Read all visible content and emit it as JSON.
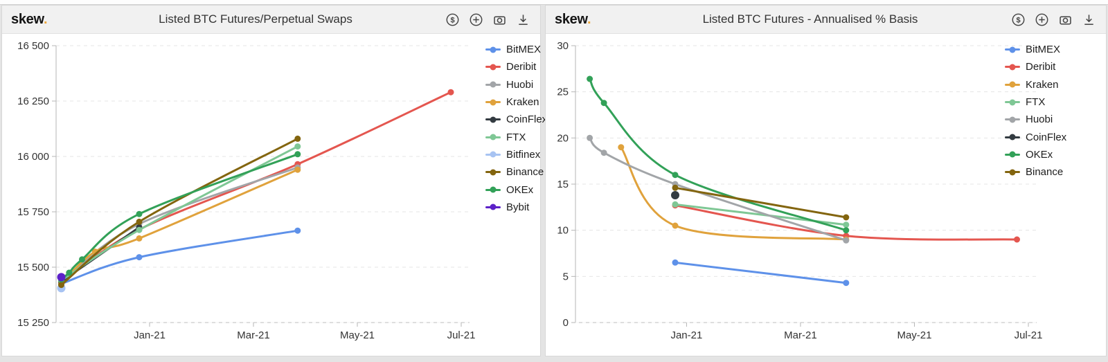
{
  "page": {
    "background": "#e4e4e4",
    "panel_background": "#ffffff",
    "header_background": "#f1f1f1"
  },
  "brand": {
    "name": "skew",
    "dot": ".",
    "dot_color": "#eda73b"
  },
  "toolbar": {
    "icons": [
      "dollar-icon",
      "plus-icon",
      "camera-icon",
      "download-icon"
    ]
  },
  "charts": [
    {
      "brand": "skew",
      "brand_dot": ".",
      "title": "Listed BTC Futures/Perpetual Swaps",
      "chart_data": {
        "type": "line",
        "title": "Listed BTC Futures/Perpetual Swaps",
        "x_axis": {
          "unit": "months since Nov-2020",
          "range": [
            0.2,
            8.0
          ],
          "ticks": [
            {
              "v": 2,
              "label": "Jan-21"
            },
            {
              "v": 4,
              "label": "Mar-21"
            },
            {
              "v": 6,
              "label": "May-21"
            },
            {
              "v": 8,
              "label": "Jul-21"
            }
          ]
        },
        "y_axis": {
          "range": [
            15250,
            16500
          ],
          "ticks": [
            {
              "v": 15250,
              "label": "15 250"
            },
            {
              "v": 15500,
              "label": "15 500"
            },
            {
              "v": 15750,
              "label": "15 750"
            },
            {
              "v": 16000,
              "label": "16 000"
            },
            {
              "v": 16250,
              "label": "16 250"
            },
            {
              "v": 16500,
              "label": "16 500"
            }
          ]
        },
        "grid": "horizontal-dashed",
        "legend_position": "right",
        "series": [
          {
            "name": "BitMEX",
            "color": "#5e91e9",
            "points": [
              [
                0.3,
                15425
              ],
              [
                1.8,
                15545
              ],
              [
                4.85,
                15665
              ]
            ]
          },
          {
            "name": "Deribit",
            "color": "#e4564f",
            "points": [
              [
                0.3,
                15430
              ],
              [
                1.8,
                15670
              ],
              [
                4.85,
                15965
              ],
              [
                7.8,
                16290
              ]
            ]
          },
          {
            "name": "Huobi",
            "color": "#a2a5a8",
            "points": [
              [
                0.3,
                15435
              ],
              [
                1.8,
                15695
              ],
              [
                4.85,
                15950
              ]
            ]
          },
          {
            "name": "Kraken",
            "color": "#e0a23c",
            "points": [
              [
                0.3,
                15425
              ],
              [
                0.95,
                15570
              ],
              [
                1.8,
                15630
              ],
              [
                4.85,
                15940
              ]
            ]
          },
          {
            "name": "CoinFlex",
            "color": "#333b41",
            "points": [
              [
                0.3,
                15435
              ],
              [
                1.8,
                15680
              ]
            ]
          },
          {
            "name": "FTX",
            "color": "#7fc795",
            "points": [
              [
                0.3,
                15440
              ],
              [
                1.8,
                15668
              ],
              [
                4.85,
                16045
              ]
            ]
          },
          {
            "name": "Bitfinex",
            "color": "#a7c3f2",
            "points": [
              [
                0.3,
                15405
              ]
            ],
            "dot_only": true
          },
          {
            "name": "Binance",
            "color": "#83650f",
            "points": [
              [
                0.3,
                15420
              ],
              [
                1.8,
                15705
              ],
              [
                4.85,
                16080
              ]
            ]
          },
          {
            "name": "OKEx",
            "color": "#32a158",
            "points": [
              [
                0.3,
                15445
              ],
              [
                0.45,
                15475
              ],
              [
                0.7,
                15535
              ],
              [
                1.8,
                15740
              ],
              [
                4.85,
                16010
              ]
            ]
          },
          {
            "name": "Bybit",
            "color": "#5c21c8",
            "points": [
              [
                0.3,
                15455
              ]
            ],
            "dot_only": true
          }
        ]
      }
    },
    {
      "brand": "skew",
      "brand_dot": ".",
      "title": "Listed BTC Futures - Annualised % Basis",
      "chart_data": {
        "type": "line",
        "title": "Listed BTC Futures - Annualised % Basis",
        "x_axis": {
          "unit": "months since Nov-2020",
          "range": [
            0.05,
            8.0
          ],
          "ticks": [
            {
              "v": 2,
              "label": "Jan-21"
            },
            {
              "v": 4,
              "label": "Mar-21"
            },
            {
              "v": 6,
              "label": "May-21"
            },
            {
              "v": 8,
              "label": "Jul-21"
            }
          ]
        },
        "y_axis": {
          "range": [
            0,
            30
          ],
          "ticks": [
            {
              "v": 0,
              "label": "0"
            },
            {
              "v": 5,
              "label": "5"
            },
            {
              "v": 10,
              "label": "10"
            },
            {
              "v": 15,
              "label": "15"
            },
            {
              "v": 20,
              "label": "20"
            },
            {
              "v": 25,
              "label": "25"
            },
            {
              "v": 30,
              "label": "30"
            }
          ]
        },
        "grid": "horizontal-dashed",
        "legend_position": "right",
        "series": [
          {
            "name": "BitMEX",
            "color": "#5e91e9",
            "points": [
              [
                1.8,
                6.5
              ],
              [
                4.8,
                4.3
              ]
            ]
          },
          {
            "name": "Deribit",
            "color": "#e4564f",
            "points": [
              [
                1.8,
                12.7
              ],
              [
                4.8,
                9.4
              ],
              [
                7.8,
                9.0
              ]
            ]
          },
          {
            "name": "Kraken",
            "color": "#e0a23c",
            "points": [
              [
                0.85,
                19.0
              ],
              [
                1.8,
                10.5
              ],
              [
                4.8,
                9.0
              ]
            ]
          },
          {
            "name": "FTX",
            "color": "#7fc795",
            "points": [
              [
                1.8,
                12.8
              ],
              [
                4.8,
                10.6
              ]
            ]
          },
          {
            "name": "Huobi",
            "color": "#a2a5a8",
            "points": [
              [
                0.3,
                20.0
              ],
              [
                0.55,
                18.4
              ],
              [
                1.8,
                15.0
              ],
              [
                4.8,
                8.9
              ]
            ]
          },
          {
            "name": "CoinFlex",
            "color": "#333b41",
            "points": [
              [
                1.8,
                13.8
              ]
            ],
            "dot_only": true
          },
          {
            "name": "OKEx",
            "color": "#32a158",
            "points": [
              [
                0.3,
                26.4
              ],
              [
                0.55,
                23.8
              ],
              [
                1.8,
                16.0
              ],
              [
                4.8,
                10.0
              ]
            ]
          },
          {
            "name": "Binance",
            "color": "#83650f",
            "points": [
              [
                1.8,
                14.6
              ],
              [
                4.8,
                11.4
              ]
            ]
          }
        ]
      }
    }
  ]
}
